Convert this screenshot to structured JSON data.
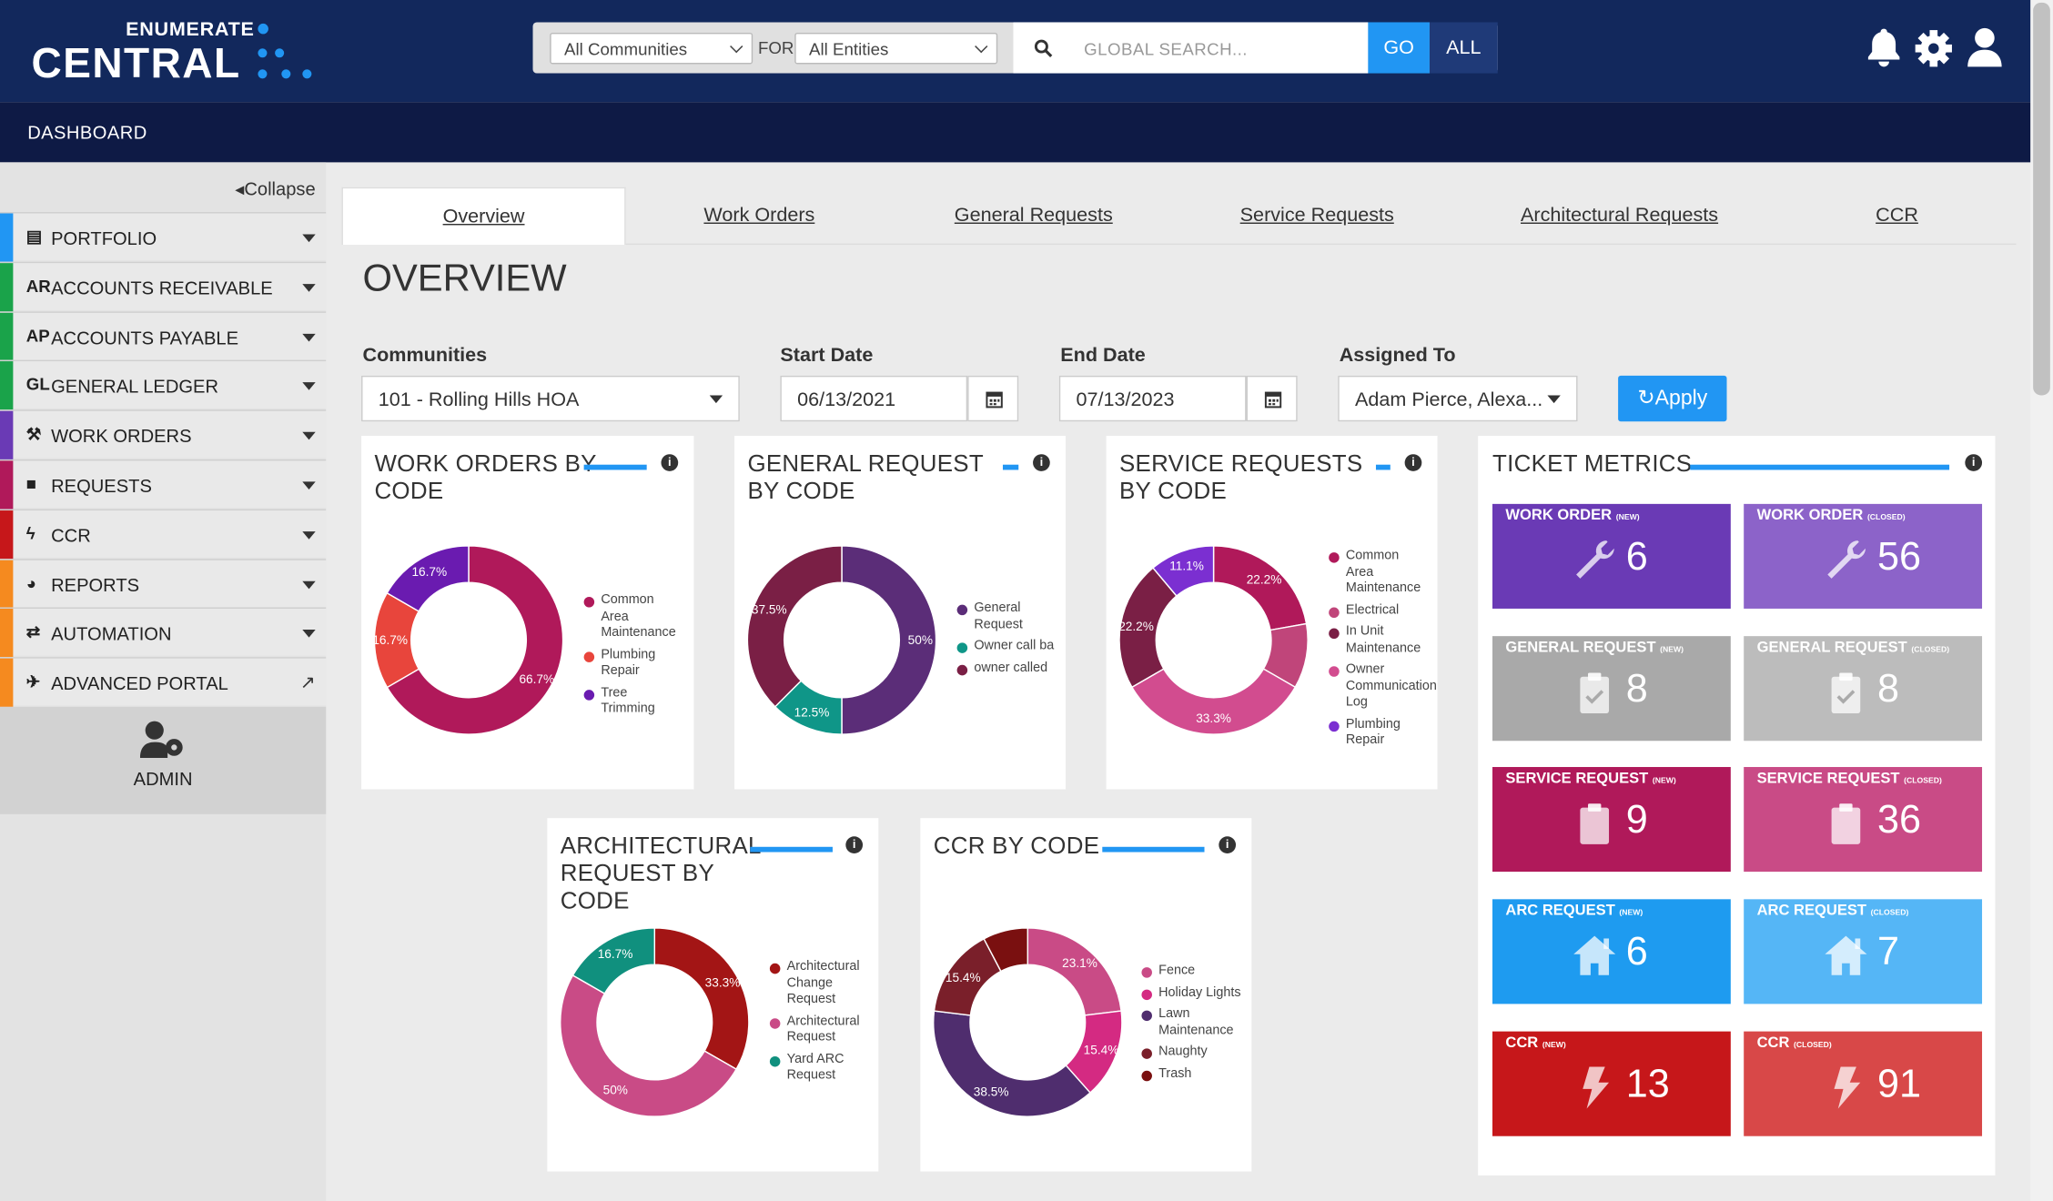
{
  "brand": {
    "line1": "ENUMERATE",
    "line2": "CENTRAL"
  },
  "search": {
    "community_filter": "All Communities",
    "for_label": "FOR",
    "entity_filter": "All Entities",
    "placeholder": "GLOBAL SEARCH...",
    "go_label": "GO",
    "all_label": "ALL"
  },
  "nav_title": "DASHBOARD",
  "sidebar": {
    "collapse_label": "Collapse",
    "items": [
      {
        "icon": "▤",
        "label": "PORTFOLIO",
        "color": "#2196f3"
      },
      {
        "icon": "AR",
        "label": "ACCOUNTS RECEIVABLE",
        "color": "#1aa34a"
      },
      {
        "icon": "AP",
        "label": "ACCOUNTS PAYABLE",
        "color": "#1aa34a"
      },
      {
        "icon": "GL",
        "label": "GENERAL LEDGER",
        "color": "#1aa34a"
      },
      {
        "icon": "⚒",
        "label": "WORK ORDERS",
        "color": "#6a3ab5"
      },
      {
        "icon": "■",
        "label": "REQUESTS",
        "color": "#b0195a"
      },
      {
        "icon": "ϟ",
        "label": "CCR",
        "color": "#c6171a"
      },
      {
        "icon": "◕",
        "label": "REPORTS",
        "color": "#f58a1f"
      },
      {
        "icon": "⇄",
        "label": "AUTOMATION",
        "color": "#f58a1f"
      },
      {
        "icon": "✈",
        "label": "ADVANCED PORTAL",
        "color": "#f58a1f"
      }
    ],
    "admin_label": "ADMIN"
  },
  "tabs": [
    "Overview",
    "Work Orders",
    "General Requests",
    "Service Requests",
    "Architectural Requests",
    "CCR"
  ],
  "page_title": "OVERVIEW",
  "filters": {
    "communities_label": "Communities",
    "communities_value": "101 - Rolling Hills HOA",
    "start_label": "Start Date",
    "start_value": "06/13/2021",
    "end_label": "End Date",
    "end_value": "07/13/2023",
    "assigned_label": "Assigned To",
    "assigned_value": "Adam Pierce, Alexa...",
    "apply_label": "Apply"
  },
  "chart_data": [
    {
      "type": "pie",
      "title": "WORK ORDERS BY CODE",
      "categories": [
        "Common Area Maintenance",
        "Plumbing Repair",
        "Tree Trimming"
      ],
      "values": [
        66.7,
        16.7,
        16.7
      ],
      "colors": [
        "#b0195a",
        "#e8453c",
        "#6a1bb0"
      ]
    },
    {
      "type": "pie",
      "title": "GENERAL REQUEST BY CODE",
      "categories": [
        "General Request",
        "Owner call back",
        "owner called"
      ],
      "values": [
        50,
        12.5,
        37.5
      ],
      "colors": [
        "#5b2d78",
        "#0f9688",
        "#7a1f45"
      ]
    },
    {
      "type": "pie",
      "title": "SERVICE REQUESTS BY CODE",
      "categories": [
        "Common Area Maintenance",
        "Electrical",
        "In Unit Maintenance",
        "Owner Communication Log",
        "Plumbing Repair"
      ],
      "values": [
        22.2,
        11.1,
        33.3,
        22.2,
        11.1
      ],
      "colors": [
        "#b0195a",
        "#c0457a",
        "#7a1f45",
        "#d24c8f",
        "#7b2fd1"
      ],
      "slice_order": [
        "Common Area Maintenance",
        "Electrical",
        "Owner Communication Log",
        "In Unit Maintenance",
        "Owner Communication Log",
        "Plumbing Repair"
      ]
    },
    {
      "type": "pie",
      "title": "ARCHITECTURAL REQUEST BY CODE",
      "categories": [
        "Architectural Change Request",
        "Architectural Request",
        "Yard ARC Request"
      ],
      "values": [
        33.3,
        50,
        16.7
      ],
      "colors": [
        "#a31515",
        "#c94b86",
        "#10907e"
      ]
    },
    {
      "type": "pie",
      "title": "CCR BY CODE",
      "categories": [
        "Fence",
        "Holiday Lights",
        "Lawn Maintenance",
        "Naughty",
        "Trash"
      ],
      "values": [
        23.1,
        15.4,
        38.5,
        15.4,
        7.7
      ],
      "colors": [
        "#c94b86",
        "#d42a82",
        "#4f2d6e",
        "#7a1f2a",
        "#7a1010"
      ]
    }
  ],
  "legends": [
    [
      "Common Area Maintenance",
      "Plumbing Repair",
      "Tree Trimming"
    ],
    [
      "General Request",
      "Owner call ba",
      "owner called"
    ],
    [
      "Common Area Maintenance",
      "Electrical",
      "In Unit Maintenance",
      "Owner Communication Log",
      "Plumbing Repair"
    ],
    [
      "Architectural Change Request",
      "Architectural Request",
      "Yard ARC Request"
    ],
    [
      "Fence",
      "Holiday Lights",
      "Lawn Maintenance",
      "Naughty",
      "Trash"
    ]
  ],
  "metrics": {
    "title": "TICKET METRICS",
    "tiles": [
      {
        "label": "WORK ORDER",
        "tag": "(NEW)",
        "value": "6",
        "color": "#6a3ab5",
        "icon": "wrench-icon"
      },
      {
        "label": "WORK ORDER",
        "tag": "(CLOSED)",
        "value": "56",
        "color": "#8c63c9",
        "icon": "wrench-icon"
      },
      {
        "label": "GENERAL REQUEST",
        "tag": "(NEW)",
        "value": "8",
        "color": "#a9a9a9",
        "icon": "clipboard-check-icon"
      },
      {
        "label": "GENERAL REQUEST",
        "tag": "(CLOSED)",
        "value": "8",
        "color": "#bcbcbc",
        "icon": "clipboard-check-icon"
      },
      {
        "label": "SERVICE REQUEST",
        "tag": "(NEW)",
        "value": "9",
        "color": "#b0195a",
        "icon": "clipboard-icon"
      },
      {
        "label": "SERVICE REQUEST",
        "tag": "(CLOSED)",
        "value": "36",
        "color": "#c94b86",
        "icon": "clipboard-icon"
      },
      {
        "label": "ARC REQUEST",
        "tag": "(NEW)",
        "value": "6",
        "color": "#1e9bf0",
        "icon": "house-icon"
      },
      {
        "label": "ARC REQUEST",
        "tag": "(CLOSED)",
        "value": "7",
        "color": "#55b6f6",
        "icon": "house-icon"
      },
      {
        "label": "CCR",
        "tag": "(NEW)",
        "value": "13",
        "color": "#c6171a",
        "icon": "bolt-icon"
      },
      {
        "label": "CCR",
        "tag": "(CLOSED)",
        "value": "91",
        "color": "#d84848",
        "icon": "bolt-icon"
      }
    ]
  }
}
